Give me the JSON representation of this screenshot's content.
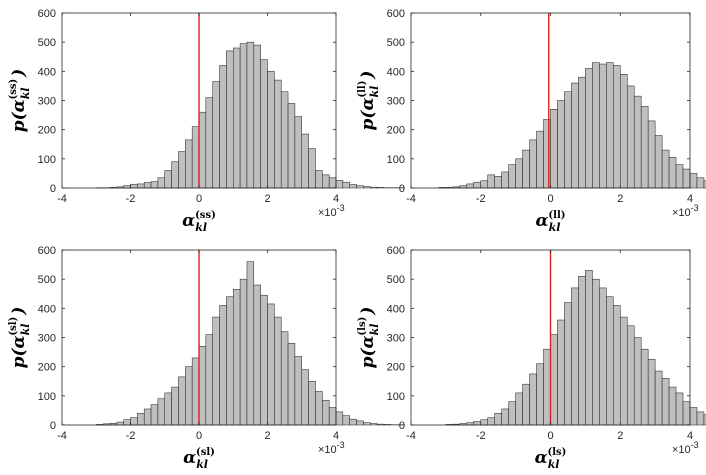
{
  "chart_data": [
    {
      "type": "bar",
      "title": "",
      "xlabel": "α_kl^(ss)",
      "ylabel": "p(α_kl^(ss))",
      "xlabel_sup": "(ss)",
      "ylabel_sup": "(ss)",
      "xlim": [
        -4,
        4
      ],
      "ylim": [
        0,
        600
      ],
      "x_ticks": [
        "-4",
        "-2",
        "0",
        "2",
        "4"
      ],
      "y_ticks": [
        "0",
        "100",
        "200",
        "300",
        "400",
        "500",
        "600"
      ],
      "x_exponent": "×10",
      "x_exponent_power": "-3",
      "bin_width": 0.2,
      "bin_start": -3.0,
      "values": [
        1,
        1,
        2,
        4,
        8,
        13,
        14,
        19,
        22,
        35,
        60,
        90,
        125,
        165,
        210,
        260,
        310,
        365,
        420,
        470,
        480,
        495,
        500,
        490,
        440,
        400,
        370,
        330,
        290,
        245,
        185,
        135,
        60,
        45,
        35,
        26,
        20,
        12,
        8,
        5,
        3,
        2,
        1,
        1,
        1
      ],
      "reference_line_x": 0,
      "bar_color": "#bfbfbf",
      "line_color": "#e02020",
      "grid": false
    },
    {
      "type": "bar",
      "title": "",
      "xlabel": "α_kl^(ll)",
      "ylabel": "p(α_kl^(ll))",
      "xlabel_sup": "(ll)",
      "ylabel_sup": "(ll)",
      "xlim": [
        -4,
        4
      ],
      "ylim": [
        0,
        600
      ],
      "x_ticks": [
        "-4",
        "-2",
        "0",
        "2",
        "4"
      ],
      "y_ticks": [
        "0",
        "100",
        "200",
        "300",
        "400",
        "500",
        "600"
      ],
      "x_exponent": "×10",
      "x_exponent_power": "-3",
      "bin_width": 0.2,
      "bin_start": -3.2,
      "values": [
        2,
        2,
        4,
        8,
        14,
        20,
        25,
        45,
        40,
        55,
        80,
        100,
        130,
        165,
        195,
        235,
        270,
        300,
        330,
        360,
        380,
        410,
        430,
        425,
        430,
        420,
        390,
        350,
        315,
        280,
        230,
        180,
        130,
        105,
        80,
        65,
        50,
        35,
        25,
        18,
        12,
        8,
        5,
        3,
        2
      ],
      "reference_line_x": -0.05,
      "bar_color": "#bfbfbf",
      "line_color": "#e02020",
      "grid": false
    },
    {
      "type": "bar",
      "title": "",
      "xlabel": "α_kl^(sl)",
      "ylabel": "p(α_kl^(sl))",
      "xlabel_sup": "(sl)",
      "ylabel_sup": "(sl)",
      "xlim": [
        -4,
        4
      ],
      "ylim": [
        0,
        600
      ],
      "x_ticks": [
        "-4",
        "-2",
        "0",
        "2",
        "4"
      ],
      "y_ticks": [
        "0",
        "100",
        "200",
        "300",
        "400",
        "500",
        "600"
      ],
      "x_exponent": "×10",
      "x_exponent_power": "-3",
      "bin_width": 0.2,
      "bin_start": -3.0,
      "values": [
        2,
        4,
        6,
        10,
        18,
        25,
        40,
        55,
        70,
        90,
        110,
        130,
        165,
        200,
        230,
        270,
        310,
        370,
        410,
        440,
        465,
        500,
        560,
        480,
        445,
        415,
        370,
        320,
        280,
        235,
        190,
        150,
        115,
        85,
        60,
        45,
        32,
        20,
        14,
        8,
        5,
        3,
        2,
        1,
        1
      ],
      "reference_line_x": 0,
      "bar_color": "#bfbfbf",
      "line_color": "#e02020",
      "grid": false
    },
    {
      "type": "bar",
      "title": "",
      "xlabel": "α_kl^(ls)",
      "ylabel": "p(α_kl^(ls))",
      "xlabel_sup": "(ls)",
      "ylabel_sup": "(ls)",
      "xlim": [
        -4,
        4
      ],
      "ylim": [
        0,
        600
      ],
      "x_ticks": [
        "-4",
        "-2",
        "0",
        "2",
        "4"
      ],
      "y_ticks": [
        "0",
        "100",
        "200",
        "300",
        "400",
        "500",
        "600"
      ],
      "x_exponent": "×10",
      "x_exponent_power": "-3",
      "bin_width": 0.2,
      "bin_start": -3.0,
      "values": [
        2,
        3,
        5,
        8,
        12,
        18,
        25,
        40,
        55,
        80,
        110,
        140,
        175,
        210,
        260,
        310,
        360,
        420,
        470,
        510,
        530,
        500,
        470,
        440,
        410,
        370,
        340,
        300,
        260,
        225,
        185,
        160,
        130,
        110,
        80,
        60,
        45,
        35,
        25,
        18,
        12,
        8,
        5,
        3,
        2
      ],
      "reference_line_x": 0,
      "bar_color": "#bfbfbf",
      "line_color": "#e02020",
      "grid": false
    }
  ]
}
